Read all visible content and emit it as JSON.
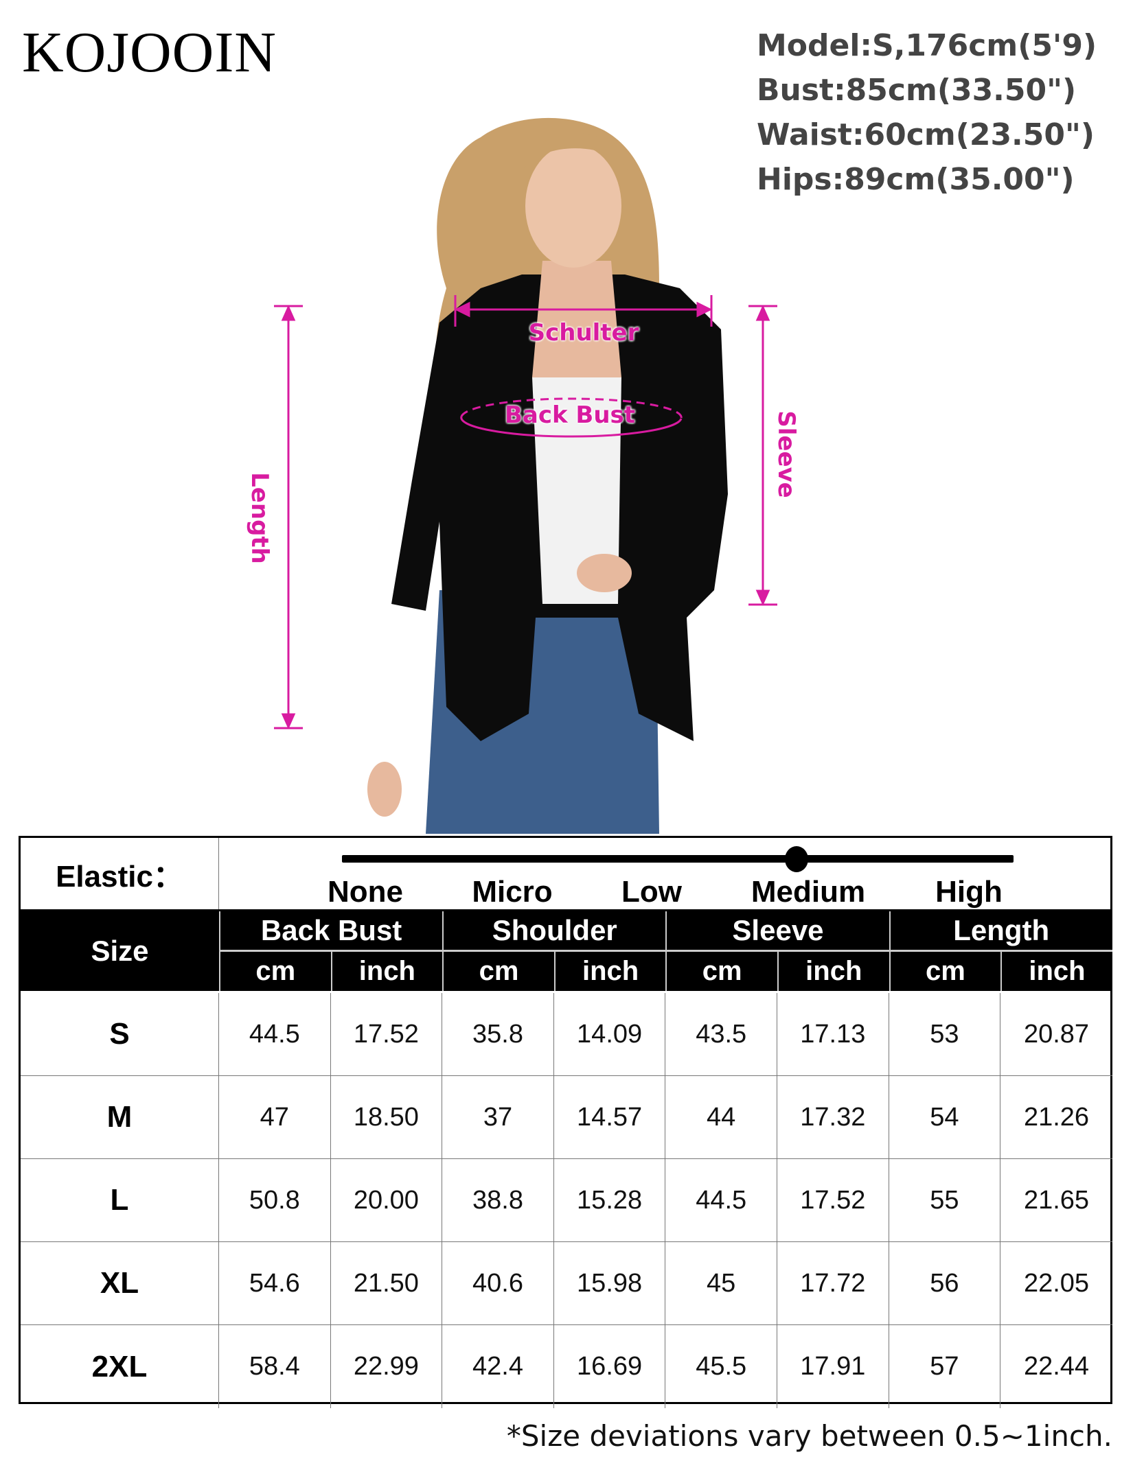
{
  "brand": "KOJOOIN",
  "model_info": [
    "Model:S,176cm(5'9)",
    "Bust:85cm(33.50\")",
    "Waist:60cm(23.50\")",
    "Hips:89cm(35.00\")"
  ],
  "measure_labels": {
    "shoulder": "Schulter",
    "back_bust": "Back Bust",
    "length": "Length",
    "sleeve": "Sleeve"
  },
  "accent_color": "#d81ba0",
  "elastic": {
    "label": "Elastic：",
    "levels": [
      "None",
      "Micro",
      "Low",
      "Medium",
      "High"
    ],
    "selected": "Medium"
  },
  "table": {
    "size_header": "Size",
    "groups": [
      "Back Bust",
      "Shoulder",
      "Sleeve",
      "Length"
    ],
    "units": [
      "cm",
      "inch"
    ],
    "rows": [
      {
        "size": "S",
        "values": [
          "44.5",
          "17.52",
          "35.8",
          "14.09",
          "43.5",
          "17.13",
          "53",
          "20.87"
        ]
      },
      {
        "size": "M",
        "values": [
          "47",
          "18.50",
          "37",
          "14.57",
          "44",
          "17.32",
          "54",
          "21.26"
        ]
      },
      {
        "size": "L",
        "values": [
          "50.8",
          "20.00",
          "38.8",
          "15.28",
          "44.5",
          "17.52",
          "55",
          "21.65"
        ]
      },
      {
        "size": "XL",
        "values": [
          "54.6",
          "21.50",
          "40.6",
          "15.98",
          "45",
          "17.72",
          "56",
          "22.05"
        ]
      },
      {
        "size": "2XL",
        "values": [
          "58.4",
          "22.99",
          "42.4",
          "16.69",
          "45.5",
          "17.91",
          "57",
          "22.44"
        ]
      }
    ]
  },
  "footnote": "*Size deviations vary between 0.5~1inch."
}
